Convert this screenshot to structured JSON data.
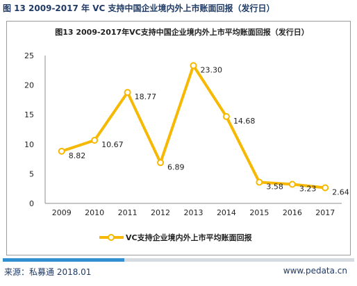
{
  "header": {
    "title": "图 13 2009-2017 年 VC 支持中国企业境内外上市账面回报（发行日）"
  },
  "footer": {
    "source": "来源：私募通 2018.01",
    "website": "www.pedata.cn"
  },
  "colors": {
    "series": "#f6b800",
    "title": "#1f3a66",
    "accent_bar": "#2f8fd1"
  },
  "chart_data": {
    "type": "line",
    "title": "图13 2009-2017年VC支持中国企业境内外上市平均账面回报（发行日）",
    "xlabel": "",
    "ylabel": "",
    "categories": [
      "2009",
      "2010",
      "2011",
      "2012",
      "2013",
      "2014",
      "2015",
      "2016",
      "2017"
    ],
    "series": [
      {
        "name": "VC支持企业境内外上市平均账面回报",
        "values": [
          8.82,
          10.67,
          18.77,
          6.89,
          23.3,
          14.68,
          3.58,
          3.23,
          2.64
        ],
        "labels": [
          "8.82",
          "10.67",
          "18.77",
          "6.89",
          "23.30",
          "14.68",
          "3.58",
          "3.23",
          "2.64"
        ]
      }
    ],
    "ylim": [
      0,
      25
    ],
    "yticks": [
      0,
      5,
      10,
      15,
      20,
      25
    ],
    "grid": false,
    "legend": "bottom"
  }
}
